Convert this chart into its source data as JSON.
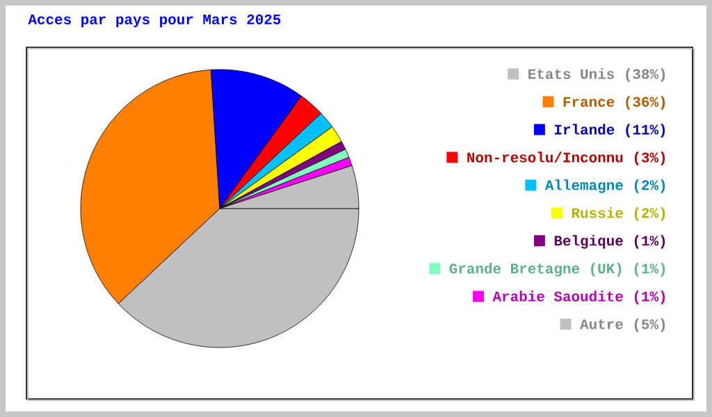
{
  "chart_data": {
    "type": "pie",
    "title": "Acces par pays pour Mars 2025",
    "categories": [
      "Etats Unis",
      "France",
      "Irlande",
      "Non-resolu/Inconnu",
      "Allemagne",
      "Russie",
      "Belgique",
      "Grande Bretagne (UK)",
      "Arabie Saoudite",
      "Autre"
    ],
    "values": [
      38,
      36,
      11,
      3,
      2,
      2,
      1,
      1,
      1,
      5
    ],
    "value_labels": [
      "(38%)",
      "(36%)",
      "(11%)",
      "(3%)",
      "(2%)",
      "(2%)",
      "(1%)",
      "(1%)",
      "(1%)",
      "(5%)"
    ],
    "colors": [
      "#c0c0c0",
      "#ff8000",
      "#0000ff",
      "#ff0000",
      "#00c0ff",
      "#ffff00",
      "#800080",
      "#80ffc0",
      "#ff00ff",
      "#c0c0c0"
    ],
    "legend": "right"
  }
}
